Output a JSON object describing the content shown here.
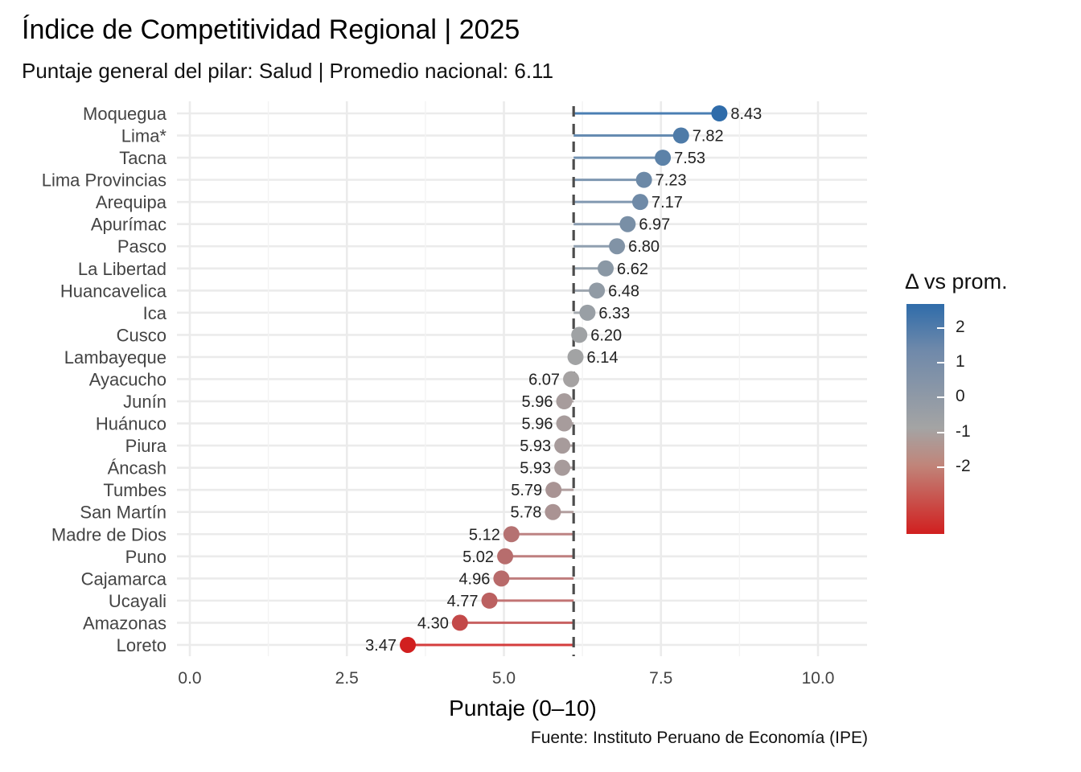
{
  "title": "Índice de Competitividad Regional | 2025",
  "subtitle": "Puntaje general del pilar: Salud | Promedio nacional: 6.11",
  "caption": "Fuente: Instituto Peruano de Economía (IPE)",
  "legend": {
    "title": "Δ vs prom.",
    "ticks": [
      "2",
      "1",
      "0",
      "-1",
      "-2"
    ],
    "colors": {
      "high": "#2F6CAA",
      "mid": "#A4A4A4",
      "low": "#D11F1F"
    }
  },
  "chart_data": {
    "type": "lollipop",
    "xlabel": "Puntaje (0–10)",
    "xlim": [
      -0.4,
      10.8
    ],
    "xticks": [
      0,
      2.5,
      5,
      7.5,
      10
    ],
    "xtick_labels": [
      "0.0",
      "2.5",
      "5.0",
      "7.5",
      "10.0"
    ],
    "reference_line": 6.11,
    "grid": true,
    "legend_position": "right",
    "categories": [
      "Moquegua",
      "Lima*",
      "Tacna",
      "Lima Provincias",
      "Arequipa",
      "Apurímac",
      "Pasco",
      "La Libertad",
      "Huancavelica",
      "Ica",
      "Cusco",
      "Lambayeque",
      "Ayacucho",
      "Junín",
      "Huánuco",
      "Piura",
      "Áncash",
      "Tumbes",
      "San Martín",
      "Madre de Dios",
      "Puno",
      "Cajamarca",
      "Ucayali",
      "Amazonas",
      "Loreto"
    ],
    "values": [
      8.43,
      7.82,
      7.53,
      7.23,
      7.17,
      6.97,
      6.8,
      6.62,
      6.48,
      6.33,
      6.2,
      6.14,
      6.07,
      5.96,
      5.96,
      5.93,
      5.93,
      5.79,
      5.78,
      5.12,
      5.02,
      4.96,
      4.77,
      4.3,
      3.47
    ],
    "value_labels": [
      "8.43",
      "7.82",
      "7.53",
      "7.23",
      "7.17",
      "6.97",
      "6.80",
      "6.62",
      "6.48",
      "6.33",
      "6.20",
      "6.14",
      "6.07",
      "5.96",
      "5.96",
      "5.93",
      "5.93",
      "5.79",
      "5.78",
      "5.12",
      "5.02",
      "4.96",
      "4.77",
      "4.30",
      "3.47"
    ]
  }
}
